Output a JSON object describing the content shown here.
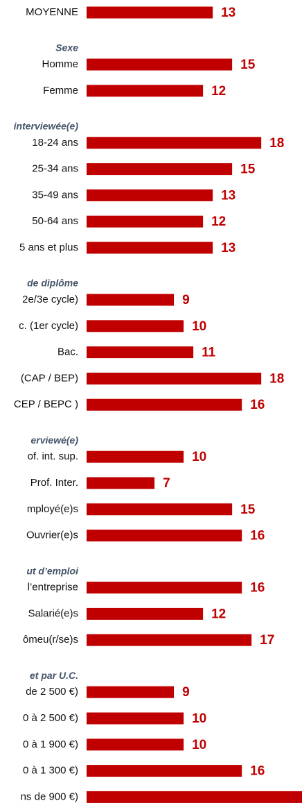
{
  "chart_data": {
    "type": "bar",
    "color": "#c00000",
    "xlim": [
      0,
      22.2
    ],
    "groups": [
      {
        "categories": [
          "MOYENNE"
        ],
        "values": [
          13
        ]
      },
      {
        "title": "Sexe",
        "categories": [
          "Homme",
          "Femme"
        ],
        "values": [
          15,
          12
        ]
      },
      {
        "title": "interviewée(e)",
        "categories": [
          "18-24 ans",
          "25-34 ans",
          "35-49 ans",
          "50-64 ans",
          "5 ans et plus"
        ],
        "values": [
          18,
          15,
          13,
          12,
          13
        ]
      },
      {
        "title": "de diplôme",
        "categories": [
          "2e/3e cycle)",
          "c. (1er cycle)",
          "Bac.",
          "(CAP / BEP)",
          "CEP / BEPC )"
        ],
        "values": [
          9,
          10,
          11,
          18,
          16
        ]
      },
      {
        "title": "erviewé(e)",
        "categories": [
          "of. int. sup.",
          "Prof. Inter.",
          "mployé(e)s",
          "Ouvrier(e)s"
        ],
        "values": [
          10,
          7,
          15,
          16
        ]
      },
      {
        "title": "ut d’emploi",
        "categories": [
          "l’entreprise",
          "Salarié(e)s",
          "ômeu(r/se)s"
        ],
        "values": [
          16,
          12,
          17
        ]
      },
      {
        "title": "et par U.C.",
        "categories": [
          "de 2 500 €)",
          "0 à 2 500 €)",
          "0 à 1 900 €)",
          "0 à 1 300 €)",
          "ns de 900 €)"
        ],
        "values": [
          9,
          10,
          10,
          16,
          23
        ]
      }
    ]
  }
}
